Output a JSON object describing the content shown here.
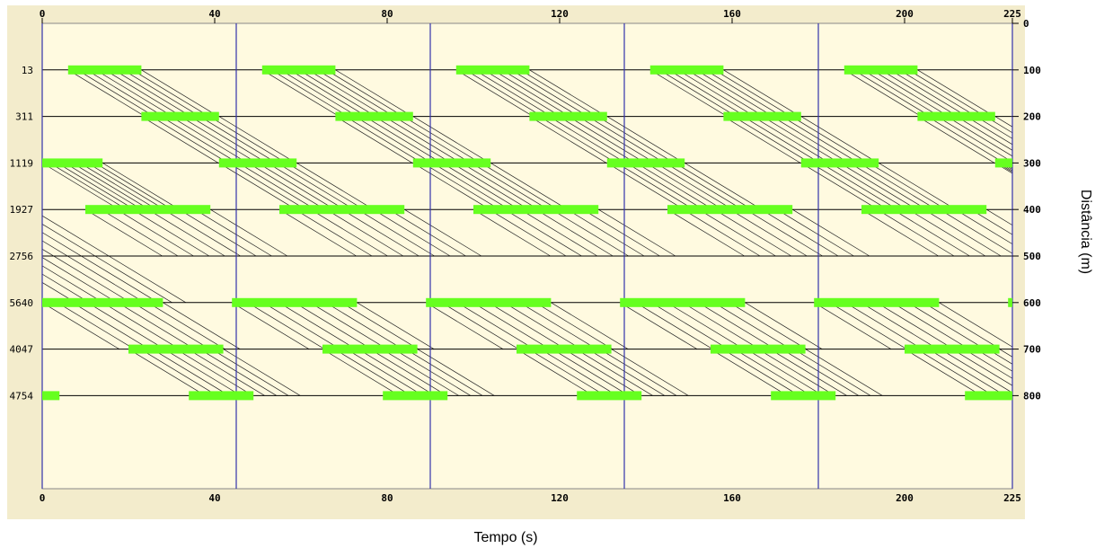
{
  "chart_data": {
    "type": "time-space diagram",
    "xlabel": "Tempo (s)",
    "ylabel": "Distância (m)",
    "xlim": [
      0,
      225
    ],
    "ylim": [
      0,
      1000
    ],
    "x_ticks": [
      0,
      40,
      80,
      120,
      160,
      200,
      225
    ],
    "right_y_ticks": [
      0,
      100,
      200,
      300,
      400,
      500,
      600,
      700,
      800
    ],
    "cycle_s": 45,
    "cycle_boundaries_s": [
      0,
      45,
      90,
      135,
      180,
      225
    ],
    "band_slope_m_per_s": 5.6,
    "intersections": [
      {
        "id": "13",
        "position_m": 100,
        "green_windows_s": [
          [
            6,
            23
          ],
          [
            51,
            68
          ],
          [
            96,
            113
          ],
          [
            141,
            158
          ],
          [
            186,
            203
          ]
        ]
      },
      {
        "id": "311",
        "position_m": 200,
        "green_windows_s": [
          [
            23,
            41
          ],
          [
            68,
            86
          ],
          [
            113,
            131
          ],
          [
            158,
            176
          ],
          [
            203,
            221
          ]
        ]
      },
      {
        "id": "1119",
        "position_m": 300,
        "green_windows_s": [
          [
            0,
            14
          ],
          [
            41,
            59
          ],
          [
            86,
            104
          ],
          [
            131,
            149
          ],
          [
            176,
            194
          ],
          [
            221,
            225
          ]
        ]
      },
      {
        "id": "1927",
        "position_m": 400,
        "green_windows_s": [
          [
            10,
            39
          ],
          [
            55,
            84
          ],
          [
            100,
            129
          ],
          [
            145,
            174
          ],
          [
            190,
            219
          ]
        ]
      },
      {
        "id": "2756",
        "position_m": 500,
        "green_windows_s": []
      },
      {
        "id": "5640",
        "position_m": 600,
        "green_windows_s": [
          [
            0,
            28
          ],
          [
            44,
            73
          ],
          [
            89,
            118
          ],
          [
            134,
            163
          ],
          [
            179,
            208
          ],
          [
            224,
            225
          ]
        ]
      },
      {
        "id": "4047",
        "position_m": 700,
        "green_windows_s": [
          [
            20,
            42
          ],
          [
            65,
            87
          ],
          [
            110,
            132
          ],
          [
            155,
            177
          ],
          [
            200,
            222
          ]
        ]
      },
      {
        "id": "4754",
        "position_m": 800,
        "green_windows_s": [
          [
            0,
            4
          ],
          [
            34,
            49
          ],
          [
            79,
            94
          ],
          [
            124,
            139
          ],
          [
            169,
            184
          ],
          [
            214,
            225
          ]
        ]
      }
    ],
    "grid": true,
    "background_color": "#fffae0",
    "frame_color": "#f3eccc",
    "green_color": "#66ff1f",
    "cycle_line_color": "#3333aa"
  }
}
